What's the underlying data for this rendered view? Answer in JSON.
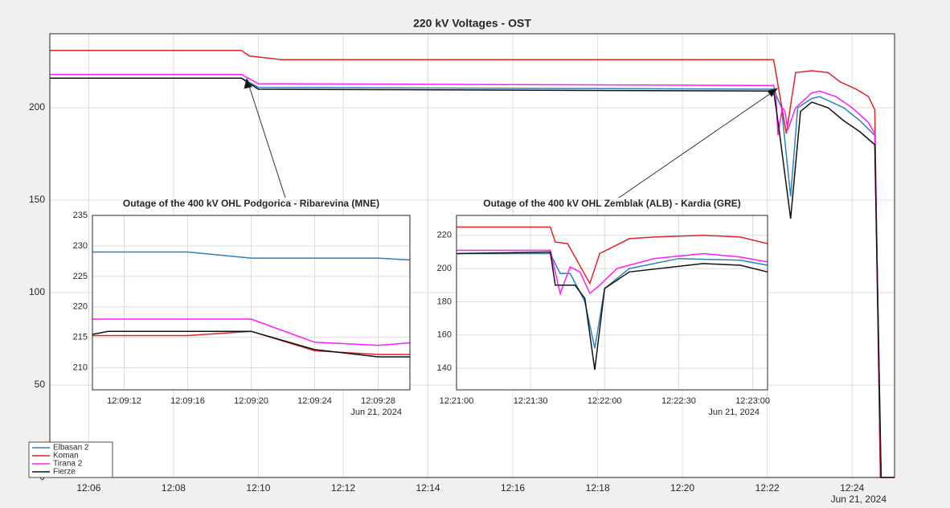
{
  "chart_data": [
    {
      "type": "line",
      "title": "220 kV Voltages - OST",
      "xlabel": "Jun 21, 2024",
      "xlim": [
        "12:05:05",
        "12:25:00"
      ],
      "xticks": [
        "12:06",
        "12:08",
        "12:10",
        "12:12",
        "12:14",
        "12:16",
        "12:18",
        "12:20",
        "12:22",
        "12:24"
      ],
      "ylim": [
        0,
        240
      ],
      "yticks": [
        0,
        50,
        100,
        150,
        200
      ],
      "grid": true,
      "legend": "lower left",
      "series": [
        {
          "name": "Elbasan 2",
          "color": "#2f7fb8",
          "x": [
            "12:05:05",
            "12:09:36",
            "12:10:00",
            "12:22:09",
            "12:22:20",
            "12:22:33",
            "12:22:43",
            "12:23:03",
            "12:23:14",
            "12:23:48",
            "12:24:11",
            "12:24:32",
            "12:24:40",
            "12:25:00"
          ],
          "values": [
            216,
            216,
            211,
            210,
            200,
            152,
            200,
            205,
            206,
            200,
            193,
            185,
            0,
            0
          ]
        },
        {
          "name": "Koman",
          "color": "#e02424",
          "x": [
            "12:05:05",
            "12:09:36",
            "12:09:47",
            "12:10:33",
            "12:22:09",
            "12:22:27",
            "12:22:40",
            "12:23:03",
            "12:23:26",
            "12:23:43",
            "12:24:06",
            "12:24:23",
            "12:24:32",
            "12:24:40",
            "12:25:00"
          ],
          "values": [
            231,
            231,
            228,
            226,
            226,
            186,
            219,
            220,
            219,
            214,
            210,
            206,
            199,
            0,
            0
          ]
        },
        {
          "name": "Tirana 2",
          "color": "#ff1cff",
          "x": [
            "12:05:05",
            "12:09:36",
            "12:10:00",
            "12:22:09",
            "12:22:12",
            "12:22:15",
            "12:22:21",
            "12:22:25",
            "12:22:29",
            "12:22:40",
            "12:23:03",
            "12:23:14",
            "12:23:37",
            "12:24:00",
            "12:24:23",
            "12:24:32",
            "12:24:41",
            "12:25:00"
          ],
          "values": [
            218,
            218,
            213,
            212,
            208,
            185,
            200,
            198,
            188,
            200,
            208,
            209,
            206,
            200,
            192,
            186,
            0,
            0
          ]
        },
        {
          "name": "Fierze",
          "color": "#111111",
          "x": [
            "12:05:05",
            "12:09:36",
            "12:10:00",
            "12:22:09",
            "12:22:16",
            "12:22:33",
            "12:22:47",
            "12:23:03",
            "12:23:26",
            "12:23:48",
            "12:24:11",
            "12:24:32",
            "12:24:41",
            "12:25:00"
          ],
          "values": [
            216,
            216,
            210,
            209,
            190,
            140,
            198,
            203,
            200,
            193,
            187,
            180,
            0,
            0
          ]
        }
      ]
    },
    {
      "type": "line",
      "title": "Outage of the 400 kV OHL Podgorica - Ribarevina (MNE)",
      "xlabel": "Jun 21, 2024",
      "xlim": [
        "12:09:10",
        "12:09:30"
      ],
      "xticks": [
        "12:09:12",
        "12:09:16",
        "12:09:20",
        "12:09:24",
        "12:09:28"
      ],
      "ylim": [
        206.4,
        235
      ],
      "yticks": [
        210,
        215,
        220,
        225,
        230,
        235
      ],
      "grid": true,
      "series": [
        {
          "color": "#2f7fb8",
          "x": [
            "12:09:10",
            "12:09:16",
            "12:09:20",
            "12:09:28",
            "12:09:30"
          ],
          "values": [
            229,
            229,
            228,
            228,
            227.7
          ]
        },
        {
          "color": "#e02424",
          "x": [
            "12:09:10",
            "12:09:16",
            "12:09:20",
            "12:09:24",
            "12:09:28",
            "12:09:30"
          ],
          "values": [
            215.3,
            215.3,
            216,
            212.8,
            212.2,
            212.2
          ]
        },
        {
          "color": "#ff1cff",
          "x": [
            "12:09:10",
            "12:09:20",
            "12:09:24",
            "12:09:28",
            "12:09:30"
          ],
          "values": [
            218,
            218,
            214.2,
            213.7,
            214.1
          ]
        },
        {
          "color": "#111111",
          "x": [
            "12:09:10",
            "12:09:11",
            "12:09:20",
            "12:09:24",
            "12:09:28",
            "12:09:30"
          ],
          "values": [
            215.5,
            216,
            216,
            213,
            211.8,
            211.8
          ]
        }
      ]
    },
    {
      "type": "line",
      "title": "Outage of the 400 kV OHL Zemblak (ALB) - Kardia (GRE)",
      "xlabel": "Jun 21, 2024",
      "xlim": [
        "12:21:00",
        "12:23:06"
      ],
      "xticks": [
        "12:21:00",
        "12:21:30",
        "12:22:00",
        "12:22:30",
        "12:23:00"
      ],
      "ylim": [
        127,
        232
      ],
      "yticks": [
        140,
        160,
        180,
        200,
        220
      ],
      "grid": true,
      "series": [
        {
          "color": "#2f7fb8",
          "x": [
            "12:21:00",
            "12:21:38",
            "12:21:42",
            "12:21:46",
            "12:21:50",
            "12:21:52",
            "12:21:56",
            "12:22:00",
            "12:22:10",
            "12:22:30",
            "12:22:55",
            "12:23:06"
          ],
          "values": [
            209,
            209,
            197,
            197,
            186,
            180,
            152,
            188,
            200,
            206,
            205,
            202
          ]
        },
        {
          "color": "#e02424",
          "x": [
            "12:21:00",
            "12:21:38",
            "12:21:40",
            "12:21:45",
            "12:21:54",
            "12:21:58",
            "12:22:10",
            "12:22:20",
            "12:22:40",
            "12:22:55",
            "12:23:06"
          ],
          "values": [
            225,
            225,
            216,
            215,
            191,
            209,
            218,
            219,
            220,
            219,
            215
          ]
        },
        {
          "color": "#ff1cff",
          "x": [
            "12:21:00",
            "12:21:38",
            "12:21:42",
            "12:21:46",
            "12:21:50",
            "12:21:54",
            "12:21:58",
            "12:22:05",
            "12:22:20",
            "12:22:40",
            "12:22:55",
            "12:23:06"
          ],
          "values": [
            211,
            211,
            185,
            201,
            198,
            185,
            190,
            200,
            206,
            209,
            207,
            204
          ]
        },
        {
          "color": "#111111",
          "x": [
            "12:21:00",
            "12:21:38",
            "12:21:40",
            "12:21:48",
            "12:21:52",
            "12:21:56",
            "12:22:00",
            "12:22:10",
            "12:22:40",
            "12:22:55",
            "12:23:06"
          ],
          "values": [
            209,
            210,
            190,
            190,
            182,
            139,
            188,
            198,
            203,
            202,
            198
          ]
        }
      ]
    }
  ]
}
